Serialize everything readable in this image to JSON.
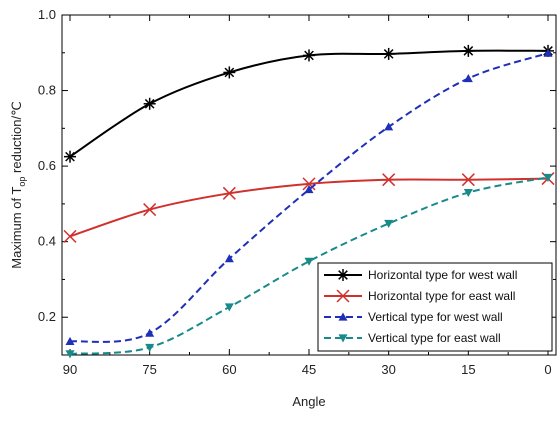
{
  "chart_data": {
    "type": "line",
    "title": "",
    "xlabel": "Angle",
    "ylabel": {
      "prefix": "Maximum of  T",
      "subscript": "op",
      "suffix": " reduction/℃"
    },
    "categories": [
      "90",
      "75",
      "60",
      "45",
      "30",
      "15",
      "0"
    ],
    "ylim": [
      0.1,
      1.0
    ],
    "yticks": [
      "0.2",
      "0.4",
      "0.6",
      "0.8",
      "1.0"
    ],
    "grid": false,
    "legend_position": "bottom-right",
    "series": [
      {
        "name": "Horizontal type for west wall",
        "values": [
          0.625,
          0.765,
          0.848,
          0.893,
          0.897,
          0.905,
          0.905
        ],
        "color": "#000000",
        "line_style": "solid",
        "marker": "asterisk"
      },
      {
        "name": "Horizontal type for east wall",
        "values": [
          0.414,
          0.485,
          0.528,
          0.553,
          0.564,
          0.564,
          0.567
        ],
        "color": "#d0312d",
        "line_style": "solid",
        "marker": "x"
      },
      {
        "name": "Vertical type for west wall",
        "values": [
          0.136,
          0.158,
          0.355,
          0.538,
          0.704,
          0.832,
          0.899
        ],
        "color": "#1f2fb8",
        "line_style": "dashed",
        "marker": "triangle-up"
      },
      {
        "name": "Vertical type for east wall",
        "values": [
          0.103,
          0.12,
          0.227,
          0.348,
          0.448,
          0.53,
          0.57
        ],
        "color": "#188a8a",
        "line_style": "dashed",
        "marker": "triangle-down"
      }
    ]
  }
}
